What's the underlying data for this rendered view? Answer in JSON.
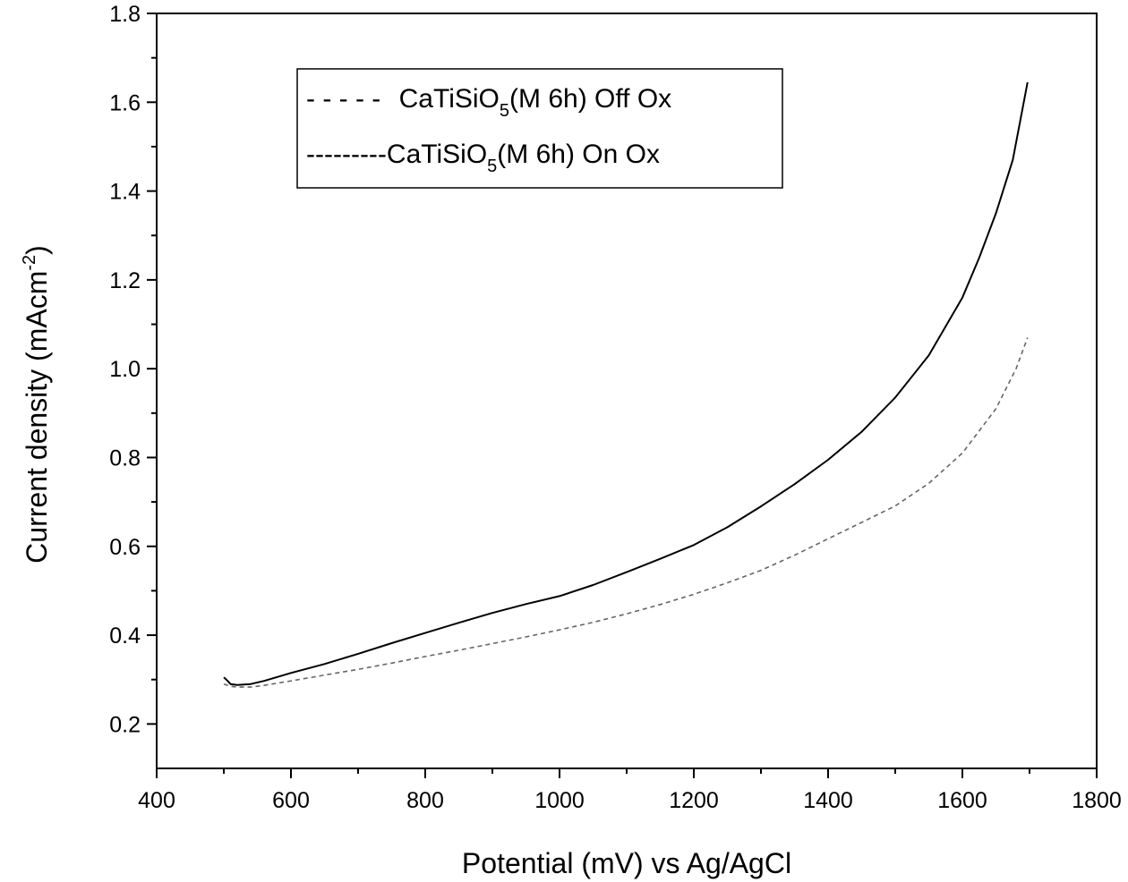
{
  "chart_data": {
    "type": "line",
    "title": "",
    "xlabel": "Potential (mV) vs Ag/AgCl",
    "ylabel": {
      "main": "Current density (mAcm",
      "sup": "-2",
      "close": ")"
    },
    "xlim": [
      400,
      1800
    ],
    "ylim": [
      0.1,
      1.8
    ],
    "x_ticks": [
      "400",
      "600",
      "800",
      "1000",
      "1200",
      "1400",
      "1600",
      "1800"
    ],
    "y_ticks": [
      "0.2",
      "0.4",
      "0.6",
      "0.8",
      "1.0",
      "1.2",
      "1.4",
      "1.6",
      "1.8"
    ],
    "grid": false,
    "legend_position": "top-left",
    "series": [
      {
        "key": "off",
        "name": "CaTiSiO5(M 6h) Off Ox",
        "legend": {
          "sample": "- - - - -",
          "base": "CaTiSiO",
          "sub": "5",
          "rest": "(M 6h) Off Ox"
        },
        "style": "dashed",
        "color": "#666666",
        "x": [
          500,
          510,
          520,
          540,
          560,
          600,
          650,
          700,
          750,
          800,
          850,
          900,
          950,
          1000,
          1050,
          1100,
          1150,
          1200,
          1250,
          1300,
          1350,
          1400,
          1450,
          1500,
          1550,
          1600,
          1650,
          1680,
          1697
        ],
        "y": [
          0.29,
          0.285,
          0.283,
          0.283,
          0.287,
          0.297,
          0.31,
          0.323,
          0.337,
          0.352,
          0.366,
          0.381,
          0.396,
          0.412,
          0.429,
          0.448,
          0.469,
          0.492,
          0.518,
          0.546,
          0.58,
          0.617,
          0.654,
          0.691,
          0.742,
          0.81,
          0.91,
          1.0,
          1.07
        ]
      },
      {
        "key": "on",
        "name": "CaTiSiO5(M 6h) On Ox",
        "legend": {
          "sample": "---------",
          "base": "CaTiSiO",
          "sub": "5",
          "rest": "(M 6h) On Ox"
        },
        "style": "solid",
        "color": "#000000",
        "x": [
          500,
          505,
          510,
          520,
          540,
          560,
          600,
          650,
          700,
          750,
          800,
          850,
          900,
          950,
          1000,
          1050,
          1100,
          1150,
          1200,
          1250,
          1300,
          1350,
          1400,
          1450,
          1500,
          1550,
          1600,
          1625,
          1650,
          1675,
          1697
        ],
        "y": [
          0.305,
          0.298,
          0.29,
          0.288,
          0.29,
          0.297,
          0.315,
          0.335,
          0.358,
          0.382,
          0.405,
          0.428,
          0.45,
          0.47,
          0.488,
          0.513,
          0.542,
          0.572,
          0.603,
          0.643,
          0.69,
          0.74,
          0.795,
          0.858,
          0.935,
          1.03,
          1.16,
          1.25,
          1.35,
          1.47,
          1.645
        ]
      }
    ]
  }
}
